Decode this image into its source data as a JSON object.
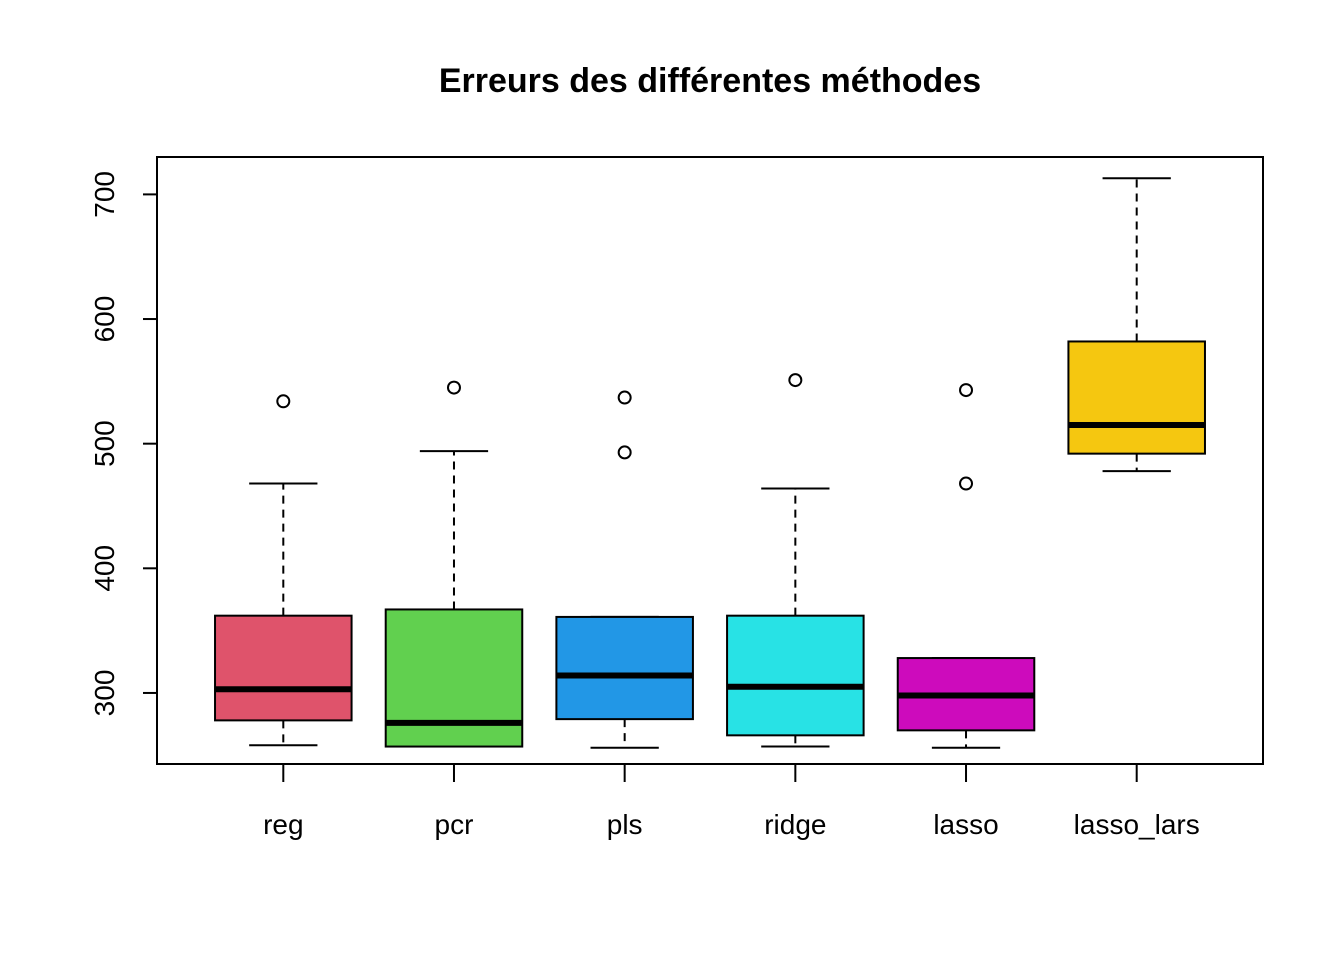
{
  "chart_data": {
    "type": "boxplot",
    "title": "Erreurs des différentes méthodes",
    "xlabel": "",
    "ylabel": "",
    "ylim": [
      243,
      730
    ],
    "yticks": [
      300,
      400,
      500,
      600,
      700
    ],
    "ytick_labels": [
      "300",
      "400",
      "500",
      "600",
      "700"
    ],
    "grid": false,
    "categories": [
      "reg",
      "pcr",
      "pls",
      "ridge",
      "lasso",
      "lasso_lars"
    ],
    "series": [
      {
        "category": "reg",
        "color": "#DF536B",
        "min": 258,
        "q1": 278,
        "median": 303,
        "q3": 362,
        "max": 468,
        "outliers": [
          534
        ]
      },
      {
        "category": "pcr",
        "color": "#61D04F",
        "min": 257,
        "q1": 257,
        "median": 276,
        "q3": 367,
        "max": 494,
        "outliers": [
          545
        ]
      },
      {
        "category": "pls",
        "color": "#2297E6",
        "min": 256,
        "q1": 279,
        "median": 314,
        "q3": 361,
        "max": 361,
        "outliers": [
          493,
          537
        ]
      },
      {
        "category": "ridge",
        "color": "#28E2E5",
        "min": 257,
        "q1": 266,
        "median": 305,
        "q3": 362,
        "max": 464,
        "outliers": [
          551
        ]
      },
      {
        "category": "lasso",
        "color": "#CD0BBC",
        "min": 256,
        "q1": 270,
        "median": 298,
        "q3": 328,
        "max": 328,
        "outliers": [
          468,
          543
        ]
      },
      {
        "category": "lasso_lars",
        "color": "#F5C710",
        "min": 478,
        "q1": 492,
        "median": 515,
        "q3": 582,
        "max": 713,
        "outliers": []
      }
    ]
  }
}
